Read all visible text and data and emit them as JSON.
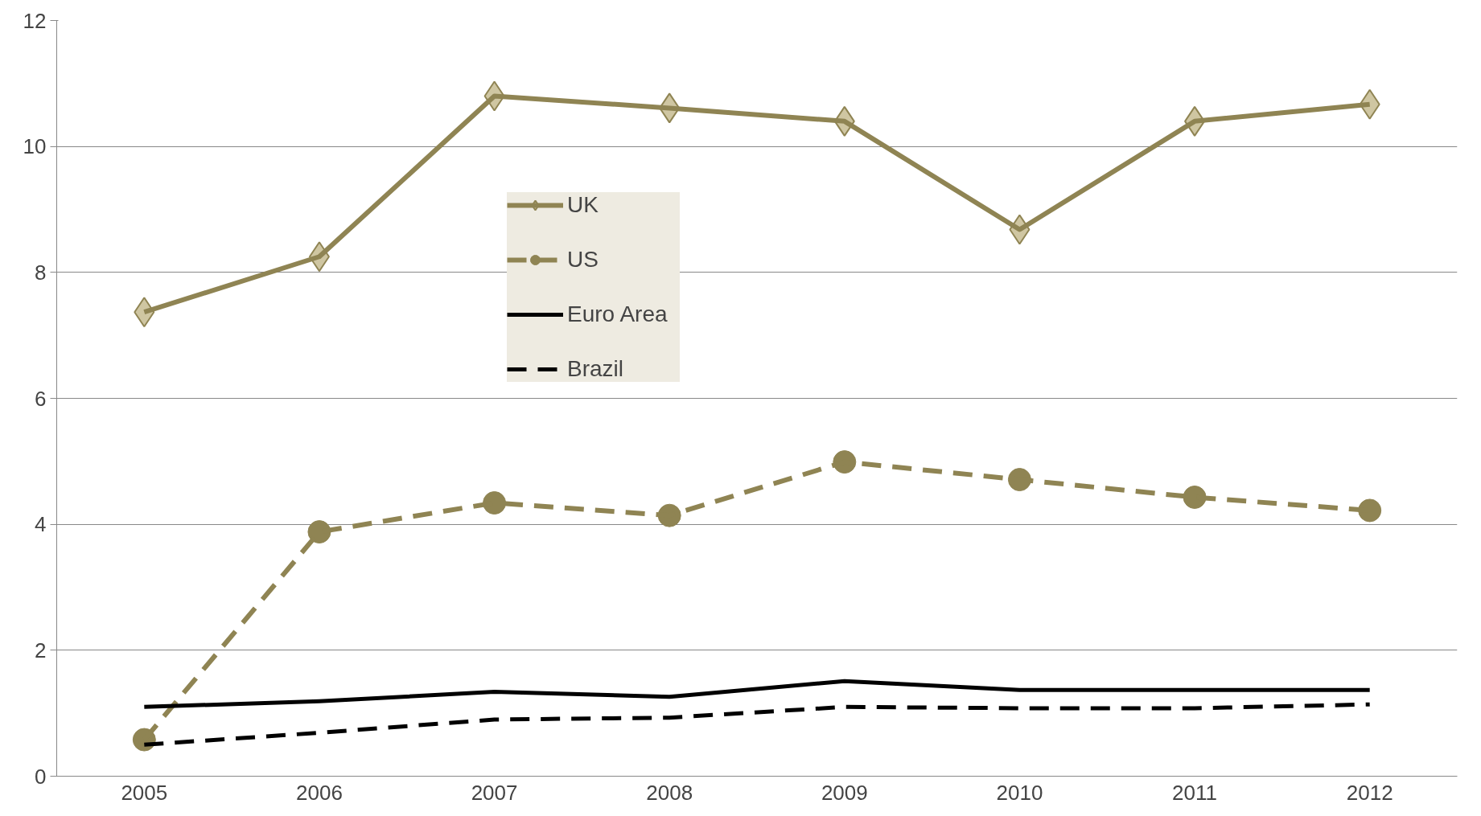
{
  "chart_data": {
    "type": "line",
    "categories": [
      "2005",
      "2006",
      "2007",
      "2008",
      "2009",
      "2010",
      "2011",
      "2012"
    ],
    "series": [
      {
        "name": "UK",
        "color": "#8f8453",
        "marker": "diamond",
        "line_style": "solid",
        "values": [
          7.37,
          8.25,
          10.8,
          10.61,
          10.4,
          8.68,
          10.4,
          10.67
        ]
      },
      {
        "name": "US",
        "color": "#8f8453",
        "marker": "circle",
        "line_style": "dashed",
        "values": [
          0.58,
          3.88,
          4.34,
          4.14,
          4.99,
          4.71,
          4.43,
          4.22
        ]
      },
      {
        "name": "Euro Area",
        "color": "#000000",
        "marker": "none",
        "line_style": "solid",
        "values": [
          1.1,
          1.19,
          1.34,
          1.26,
          1.51,
          1.37,
          1.37,
          1.37
        ]
      },
      {
        "name": "Brazil",
        "color": "#000000",
        "marker": "none",
        "line_style": "dashed",
        "values": [
          0.5,
          0.69,
          0.9,
          0.93,
          1.1,
          1.08,
          1.08,
          1.14
        ]
      }
    ],
    "ylim": [
      0,
      12
    ],
    "yticks": [
      0,
      2,
      4,
      6,
      8,
      10,
      12
    ],
    "grid": "y",
    "legend": "top"
  }
}
